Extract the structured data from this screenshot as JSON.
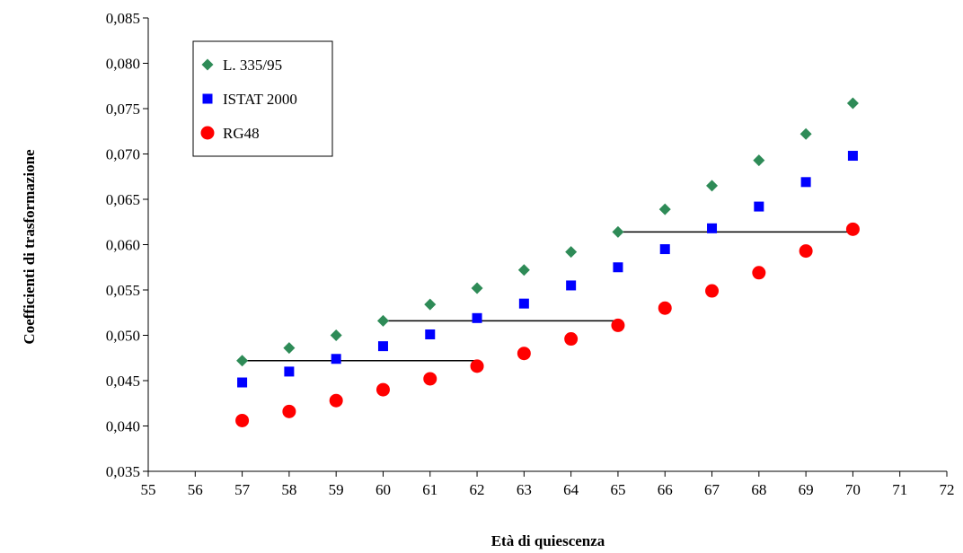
{
  "chart_data": {
    "type": "scatter",
    "xlabel": "Età di quiescenza",
    "ylabel": "Coefficienti di trasformazione",
    "xlim": [
      55,
      72
    ],
    "ylim": [
      0.035,
      0.085
    ],
    "x_ticks": [
      "55",
      "56",
      "57",
      "58",
      "59",
      "60",
      "61",
      "62",
      "63",
      "64",
      "65",
      "66",
      "67",
      "68",
      "69",
      "70",
      "71",
      "72"
    ],
    "y_ticks": [
      "0,035",
      "0,040",
      "0,045",
      "0,050",
      "0,055",
      "0,060",
      "0,065",
      "0,070",
      "0,075",
      "0,080",
      "0,085"
    ],
    "x_tick_values": [
      55,
      56,
      57,
      58,
      59,
      60,
      61,
      62,
      63,
      64,
      65,
      66,
      67,
      68,
      69,
      70,
      71,
      72
    ],
    "y_tick_values": [
      0.035,
      0.04,
      0.045,
      0.05,
      0.055,
      0.06,
      0.065,
      0.07,
      0.075,
      0.08,
      0.085
    ],
    "grid": false,
    "legend_position": "top-left",
    "x": [
      57,
      58,
      59,
      60,
      61,
      62,
      63,
      64,
      65,
      66,
      67,
      68,
      69,
      70
    ],
    "series": [
      {
        "name": "L. 335/95",
        "marker": "diamond",
        "color": "#2e8b57",
        "values": [
          0.0472,
          0.0486,
          0.05,
          0.0516,
          0.0534,
          0.0552,
          0.0572,
          0.0592,
          0.0614,
          0.0639,
          0.0665,
          0.0693,
          0.0722,
          0.0756
        ]
      },
      {
        "name": "ISTAT 2000",
        "marker": "square",
        "color": "#0000ff",
        "values": [
          0.0448,
          0.046,
          0.0474,
          0.0488,
          0.0501,
          0.0519,
          0.0535,
          0.0555,
          0.0575,
          0.0595,
          0.0618,
          0.0642,
          0.0669,
          0.0698
        ]
      },
      {
        "name": "RG48",
        "marker": "circle",
        "color": "#ff0000",
        "values": [
          0.0406,
          0.0416,
          0.0428,
          0.044,
          0.0452,
          0.0466,
          0.048,
          0.0496,
          0.0511,
          0.053,
          0.0549,
          0.0569,
          0.0593,
          0.0617
        ]
      }
    ],
    "reference_lines": [
      {
        "x1": 57,
        "x2": 62,
        "y": 0.0472
      },
      {
        "x1": 60,
        "x2": 65,
        "y": 0.0516
      },
      {
        "x1": 65,
        "x2": 70,
        "y": 0.0614
      }
    ]
  }
}
